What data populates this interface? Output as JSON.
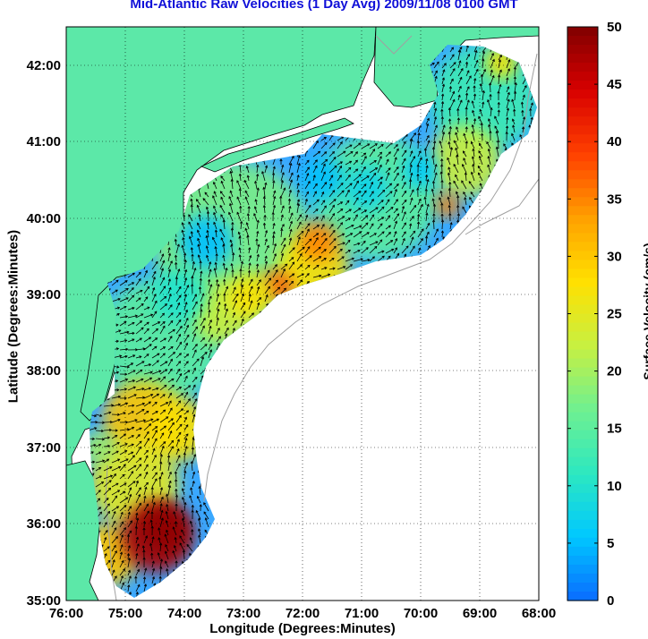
{
  "title": "Mid-Atlantic Raw Velocities (1 Day Avg) 2009/11/08 0100 GMT",
  "x_axis": {
    "label": "Longitude (Degrees:Minutes)",
    "ticks": [
      "76:00",
      "75:00",
      "74:00",
      "73:00",
      "72:00",
      "71:00",
      "70:00",
      "69:00",
      "68:00"
    ]
  },
  "y_axis": {
    "label": "Latitude (Degrees:Minutes)",
    "ticks": [
      "42:00",
      "41:00",
      "40:00",
      "39:00",
      "38:00",
      "37:00",
      "36:00",
      "35:00"
    ]
  },
  "colorbar": {
    "label": "Surface Velocity (cm/s)",
    "ticks": [
      "50",
      "45",
      "40",
      "35",
      "30",
      "25",
      "20",
      "15",
      "10",
      "5",
      "0"
    ],
    "range": [
      0,
      50
    ],
    "colors": [
      "#0a6cff",
      "#00c8ff",
      "#2de8c0",
      "#70f090",
      "#c8f040",
      "#ffe000",
      "#ffa000",
      "#ff4000",
      "#d80000",
      "#800000"
    ]
  },
  "colors": {
    "land": "#5ce8a8",
    "ocean_bg": "#ffffff",
    "title": "#1010d8",
    "coast_line": "#000000",
    "bathymetry": "#999999",
    "vectors": "#000000"
  }
}
